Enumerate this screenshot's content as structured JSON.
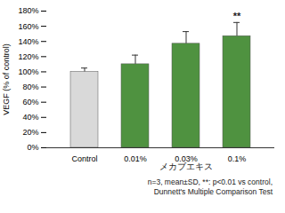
{
  "chart_data": {
    "type": "bar",
    "ylabel": "VEGF (% of control)",
    "categories": [
      "Control",
      "0.01%",
      "0.03%",
      "0.1%"
    ],
    "values": [
      100,
      110,
      137,
      147
    ],
    "errors": [
      5,
      12,
      16,
      18
    ],
    "colors": [
      "#d9d9d9",
      "#4f9240",
      "#4f9240",
      "#4f9240"
    ],
    "groups": [
      {
        "label": "メカブエキス",
        "categories": [
          "0.01%",
          "0.03%",
          "0.1%"
        ]
      }
    ],
    "annotations": [
      {
        "category": "0.1%",
        "text": "**"
      }
    ],
    "caption": [
      "n=3, mean±SD,   **: p<0.01 vs control,",
      "Dunnett's Multiple Comparison Test"
    ],
    "ylim": [
      0,
      180
    ],
    "yticks": [
      {
        "value": 0,
        "label": "0%"
      },
      {
        "value": 20,
        "label": "20%"
      },
      {
        "value": 40,
        "label": "40%"
      },
      {
        "value": 60,
        "label": "60%"
      },
      {
        "value": 80,
        "label": "80%"
      },
      {
        "value": 100,
        "label": "100%"
      },
      {
        "value": 120,
        "label": "120%"
      },
      {
        "value": 140,
        "label": "140%"
      },
      {
        "value": 160,
        "label": "160%"
      },
      {
        "value": 180,
        "label": "180%"
      }
    ],
    "grid": false
  }
}
